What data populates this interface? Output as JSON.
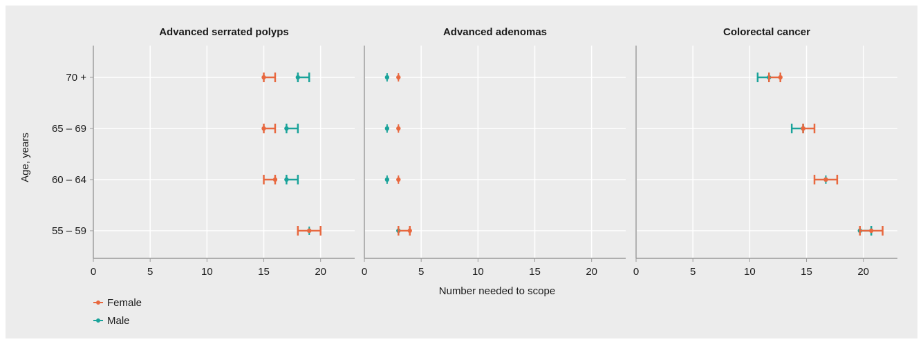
{
  "chart_data": {
    "type": "scatter",
    "subtype": "forest-plot with error bars, small multiples",
    "ylabel": "Age, years",
    "xlabel": "Number needed to scope",
    "categories": [
      "70 +",
      "65 – 69",
      "60 – 64",
      "55 – 59"
    ],
    "xlim": [
      0,
      23
    ],
    "xticks": [
      0,
      5,
      10,
      15,
      20
    ],
    "grid": true,
    "legend_position": "bottom-left",
    "colors": {
      "Female": "#e8683f",
      "Male": "#1aa39a",
      "grid": "#ffffff",
      "axis": "#9a9a9a",
      "background": "#ececec"
    },
    "legend": [
      "Female",
      "Male"
    ],
    "panels": [
      {
        "title": "Advanced serrated polyps",
        "series": [
          {
            "name": "Female",
            "points": [
              {
                "category": "70 +",
                "value": 15,
                "lo": 15,
                "hi": 16
              },
              {
                "category": "65 – 69",
                "value": 15,
                "lo": 15,
                "hi": 16
              },
              {
                "category": "60 – 64",
                "value": 16,
                "lo": 15,
                "hi": 16
              },
              {
                "category": "55 – 59",
                "value": 19,
                "lo": 18,
                "hi": 20
              }
            ]
          },
          {
            "name": "Male",
            "points": [
              {
                "category": "70 +",
                "value": 18,
                "lo": 18,
                "hi": 19
              },
              {
                "category": "65 – 69",
                "value": 17,
                "lo": 17,
                "hi": 18
              },
              {
                "category": "60 – 64",
                "value": 17,
                "lo": 17,
                "hi": 18
              },
              {
                "category": "55 – 59",
                "value": 19,
                "lo": 19,
                "hi": 19
              }
            ]
          }
        ]
      },
      {
        "title": "Advanced adenomas",
        "series": [
          {
            "name": "Female",
            "points": [
              {
                "category": "70 +",
                "value": 3,
                "lo": 3,
                "hi": 3
              },
              {
                "category": "65 – 69",
                "value": 3,
                "lo": 3,
                "hi": 3
              },
              {
                "category": "60 – 64",
                "value": 3,
                "lo": 3,
                "hi": 3
              },
              {
                "category": "55 – 59",
                "value": 4,
                "lo": 3,
                "hi": 4
              }
            ]
          },
          {
            "name": "Male",
            "points": [
              {
                "category": "70 +",
                "value": 2,
                "lo": 2,
                "hi": 2
              },
              {
                "category": "65 – 69",
                "value": 2,
                "lo": 2,
                "hi": 2
              },
              {
                "category": "60 – 64",
                "value": 2,
                "lo": 2,
                "hi": 2
              },
              {
                "category": "55 – 59",
                "value": 3,
                "lo": 3,
                "hi": 3
              }
            ]
          }
        ]
      },
      {
        "title": "Colorectal cancer",
        "series": [
          {
            "name": "Female",
            "points": [
              {
                "category": "70 +",
                "value": 12.7,
                "lo": 11.7,
                "hi": 12.7
              },
              {
                "category": "65 – 69",
                "value": 14.7,
                "lo": 14.7,
                "hi": 15.7
              },
              {
                "category": "60 – 64",
                "value": 16.7,
                "lo": 15.7,
                "hi": 17.7
              },
              {
                "category": "55 – 59",
                "value": 20.7,
                "lo": 19.7,
                "hi": 21.7
              }
            ]
          },
          {
            "name": "Male",
            "points": [
              {
                "category": "70 +",
                "value": 11.7,
                "lo": 10.7,
                "hi": 11.7
              },
              {
                "category": "65 – 69",
                "value": 14.7,
                "lo": 13.7,
                "hi": 14.7
              },
              {
                "category": "60 – 64",
                "value": 16.7,
                "lo": 16.7,
                "hi": 16.7
              },
              {
                "category": "55 – 59",
                "value": 19.7,
                "lo": 19.7,
                "hi": 20.7
              }
            ]
          }
        ]
      }
    ]
  }
}
